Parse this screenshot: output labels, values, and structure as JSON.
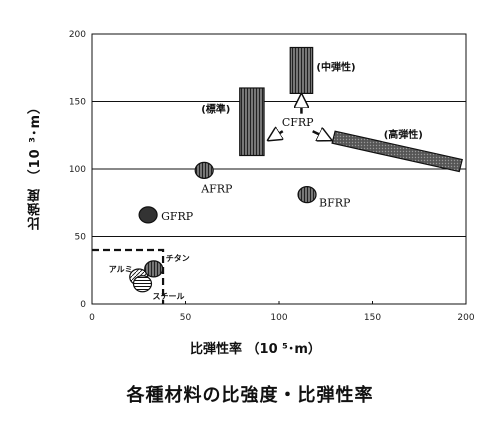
{
  "caption": "各種材料の比強度・比弾性率",
  "chart_data": {
    "type": "scatter",
    "title": "",
    "xlabel": "比弾性率 （10 ⁵･m）",
    "ylabel": "比強度 （10 ³･m）",
    "xlim": [
      0,
      200
    ],
    "ylim": [
      0,
      200
    ],
    "xticks": [
      "0",
      "50",
      "100",
      "150",
      "200"
    ],
    "yticks": [
      "0",
      "50",
      "100",
      "150",
      "200"
    ],
    "gridlines_y": [
      50,
      100,
      150
    ],
    "points": [
      {
        "label": "GFRP",
        "x": 30,
        "y": 66
      },
      {
        "label": "AFRP",
        "x": 60,
        "y": 99
      },
      {
        "label": "BFRP",
        "x": 115,
        "y": 81
      },
      {
        "label": "アルミ",
        "x": 25,
        "y": 20
      },
      {
        "label": "チタン",
        "x": 33,
        "y": 26
      },
      {
        "label": "スチール",
        "x": 27,
        "y": 15
      }
    ],
    "regions": [
      {
        "label": "(標準)",
        "x": [
          79,
          92
        ],
        "y": [
          110,
          160
        ]
      },
      {
        "label": "(中弾性)",
        "x": [
          106,
          118
        ],
        "y": [
          156,
          190
        ]
      },
      {
        "label": "(高弾性)",
        "x": [
          130,
          198
        ],
        "y": [
          97,
          128
        ]
      }
    ],
    "group_label": "CFRP",
    "metal_box": {
      "x": [
        0,
        38
      ],
      "y": [
        0,
        40
      ]
    }
  }
}
